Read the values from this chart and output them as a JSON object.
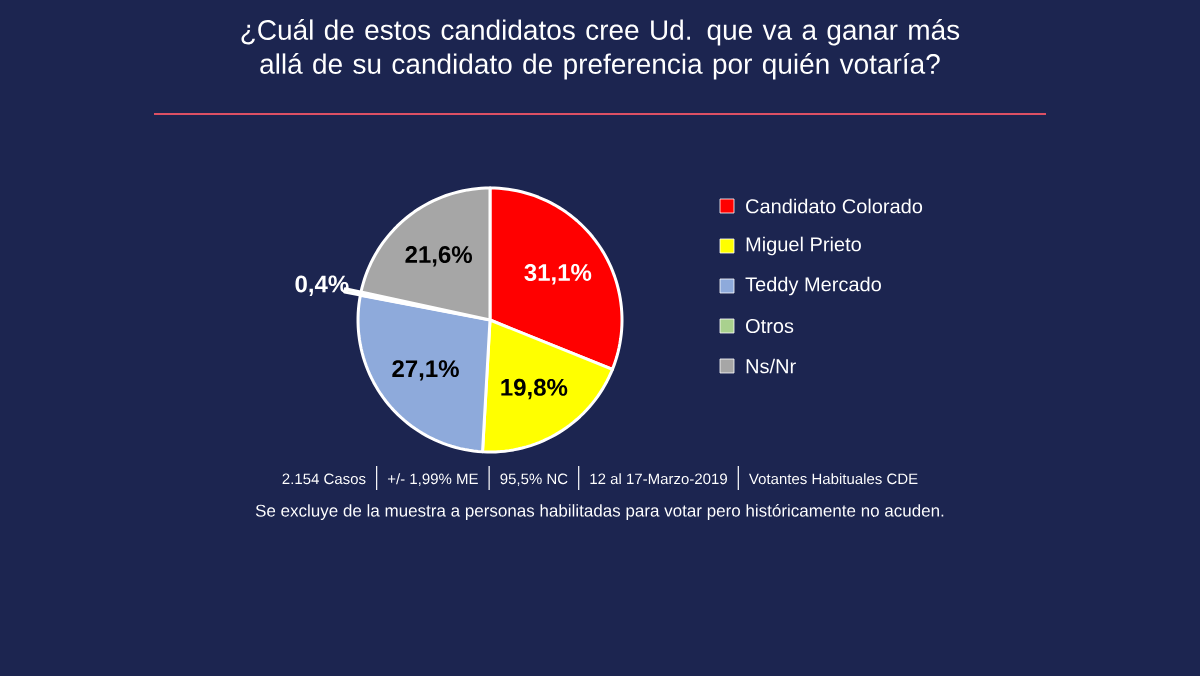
{
  "chart_data": {
    "type": "pie",
    "title": "¿Cuál de estos candidatos cree Ud. que va a ganar más allá de su candidato de preferencia por quién votaría?",
    "categories": [
      "Candidato Colorado",
      "Miguel Prieto",
      "Teddy Mercado",
      "Otros",
      "Ns/Nr"
    ],
    "values": [
      31.1,
      19.8,
      27.1,
      0.4,
      21.6
    ],
    "value_labels": [
      "31,1%",
      "19,8%",
      "27,1%",
      "0,4%",
      "21,6%"
    ],
    "colors": [
      "#ff0000",
      "#ffff00",
      "#8eaadb",
      "#a9d18e",
      "#a6a6a6"
    ],
    "legend": "right",
    "annotations": [
      "2.154 Casos",
      "+/- 1,99% ME",
      "95,5% NC",
      "12 al 17-Marzo-2019",
      "Votantes Habituales CDE",
      "Se excluye de la muestra a personas habilitadas para votar pero históricamente no acuden."
    ]
  }
}
